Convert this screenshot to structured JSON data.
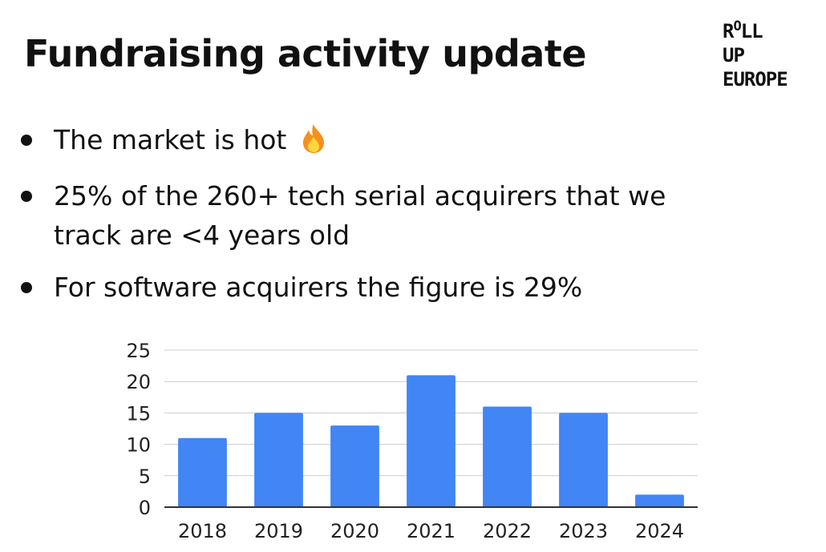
{
  "slide": {
    "title": "Fundraising activity update",
    "logo": {
      "line1_a": "R",
      "line1_o": "O",
      "line1_b": "LL",
      "line2": "UP",
      "line3": "EUROPE"
    },
    "bullets": [
      "The market is hot",
      "25% of the 260+ tech serial acquirers that we",
      "track are <4 years old",
      "For software acquirers the figure is 29%"
    ],
    "icons": {
      "bullet1_emoji": "fire-icon"
    }
  },
  "colors": {
    "bar": "#4285f4",
    "grid": "#cccccc",
    "axis": "#333333",
    "text": "#111111"
  },
  "chart_data": {
    "type": "bar",
    "categories": [
      "2018",
      "2019",
      "2020",
      "2021",
      "2022",
      "2023",
      "2024"
    ],
    "values": [
      11,
      15,
      13,
      21,
      16,
      15,
      2
    ],
    "ylim": [
      0,
      25
    ],
    "yticks": [
      0,
      5,
      10,
      15,
      20,
      25
    ],
    "grid": true,
    "legend": "none"
  }
}
